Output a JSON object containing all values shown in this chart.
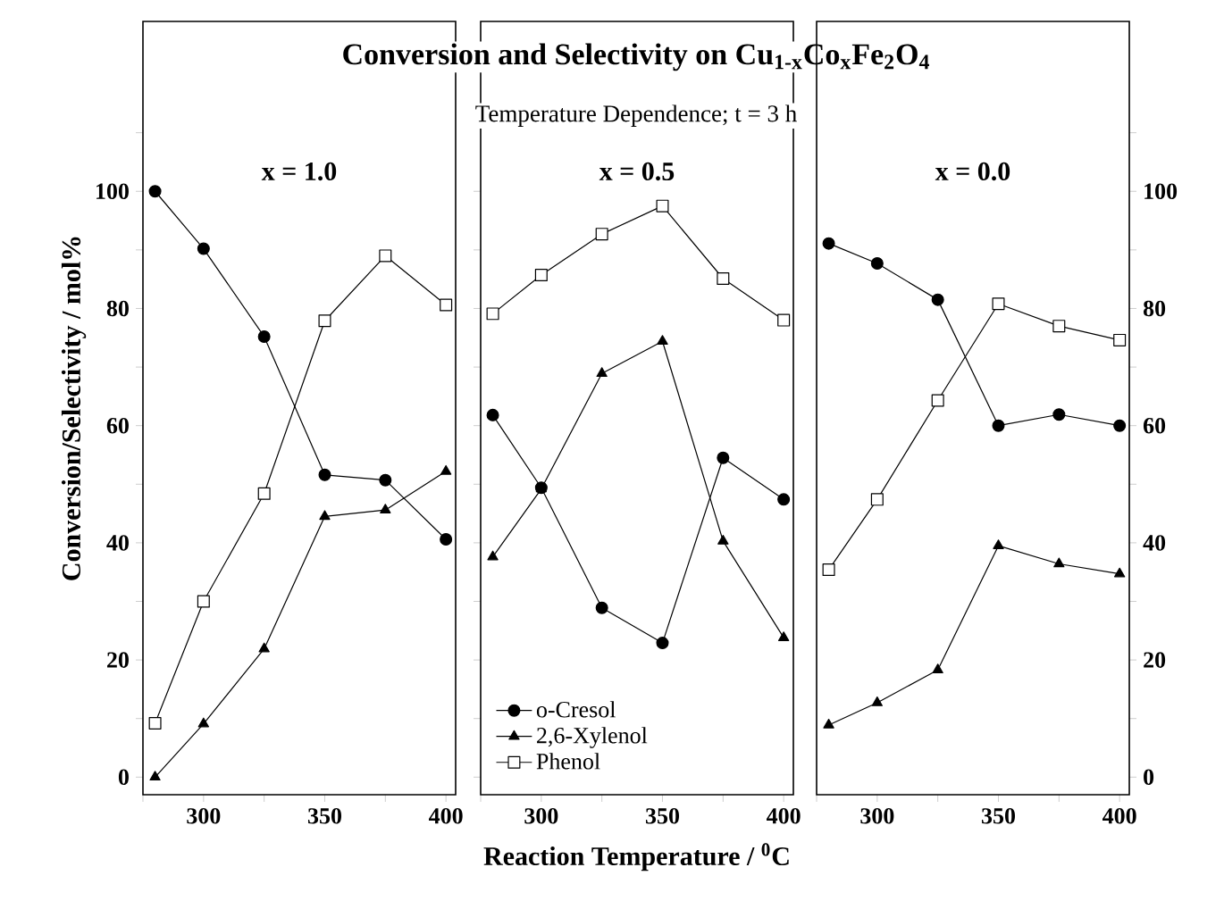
{
  "chart_data": [
    {
      "type": "line",
      "ylabel": "Conversion/Selectivity / mol%",
      "annotations": [
        "x = 1.0"
      ],
      "x": [
        280,
        300,
        325,
        350,
        375,
        400
      ],
      "xlim": [
        275,
        404
      ],
      "xticks": [
        {
          "value": 275,
          "label": null
        },
        300,
        {
          "value": 325,
          "label": null
        },
        350,
        {
          "value": 375,
          "label": null
        },
        400
      ],
      "ylim": [
        -3,
        129
      ],
      "yticks": [
        0,
        {
          "value": 10,
          "label": null
        },
        20,
        {
          "value": 30,
          "label": null
        },
        40,
        {
          "value": 50,
          "label": null
        },
        60,
        {
          "value": 70,
          "label": null
        },
        80,
        {
          "value": 90,
          "label": null
        },
        100,
        {
          "value": 110,
          "label": null
        }
      ],
      "series": [
        {
          "color": "#000000",
          "marker": "circle",
          "values": [
            100,
            90.2,
            75.2,
            51.6,
            50.7,
            40.6
          ]
        },
        {
          "color": "#000000",
          "marker": "triangle",
          "values": [
            0,
            9.1,
            21.9,
            44.5,
            45.6,
            52.2
          ]
        },
        {
          "color": "#000000",
          "marker": "square",
          "values": [
            9.2,
            30,
            48.4,
            77.9,
            89,
            80.6
          ]
        }
      ]
    },
    {
      "type": "line",
      "title": "**Conversion and Selectivity on Cu$_{1-x}$Co$_{x}$Fe$_{2}$O$_{4}$**",
      "subtitle": "Temperature Dependence; t = 3 h",
      "xlabel": "Reaction Temperature / $^{0}$C",
      "annotations": [
        "x = 0.5"
      ],
      "legend": "bottom left",
      "tick_labels": "x",
      "x": [
        280,
        300,
        325,
        350,
        375,
        400
      ],
      "xlim": [
        275,
        404
      ],
      "xticks": [
        {
          "value": 275,
          "label": null
        },
        300,
        {
          "value": 325,
          "label": null
        },
        350,
        {
          "value": 375,
          "label": null
        },
        400
      ],
      "ylim": [
        -3,
        129
      ],
      "yticks": [
        0,
        10,
        20,
        30,
        40,
        50,
        60,
        70,
        80,
        90,
        100
      ],
      "series": [
        {
          "name": "o-Cresol",
          "color": "#000000",
          "marker": "circle",
          "values": [
            61.8,
            49.4,
            28.9,
            22.9,
            54.5,
            47.4
          ]
        },
        {
          "name": "2,6-Xylenol",
          "color": "#000000",
          "marker": "triangle",
          "values": [
            37.6,
            49.2,
            68.9,
            74.4,
            40.3,
            23.8
          ]
        },
        {
          "name": "Phenol",
          "color": "#000000",
          "marker": "square",
          "values": [
            79.1,
            85.7,
            92.7,
            97.5,
            85.1,
            78
          ]
        }
      ]
    },
    {
      "type": "line",
      "annotations": [
        "x = 0.0"
      ],
      "x": [
        280,
        300,
        325,
        350,
        375,
        400
      ],
      "xlim": [
        275,
        404
      ],
      "xticks": [
        {
          "value": 275,
          "label": null
        },
        300,
        {
          "value": 325,
          "label": null
        },
        350,
        {
          "value": 375,
          "label": null
        },
        400
      ],
      "y2lim": [
        -3,
        129
      ],
      "y2ticks": [
        0,
        {
          "value": 10,
          "label": null
        },
        20,
        {
          "value": 30,
          "label": null
        },
        40,
        {
          "value": 50,
          "label": null
        },
        60,
        {
          "value": 70,
          "label": null
        },
        80,
        {
          "value": 90,
          "label": null
        },
        100,
        {
          "value": 110,
          "label": null
        }
      ],
      "series": [
        {
          "color": "#000000",
          "marker": "circle",
          "axis": "y2",
          "values": [
            91.1,
            87.7,
            81.5,
            60,
            61.9,
            60
          ]
        },
        {
          "color": "#000000",
          "marker": "triangle",
          "axis": "y2",
          "values": [
            8.9,
            12.7,
            18.3,
            39.5,
            36.4,
            34.7
          ]
        },
        {
          "color": "#000000",
          "marker": "square",
          "axis": "y2",
          "values": [
            35.4,
            47.4,
            64.3,
            80.8,
            77,
            74.6
          ]
        }
      ]
    }
  ]
}
